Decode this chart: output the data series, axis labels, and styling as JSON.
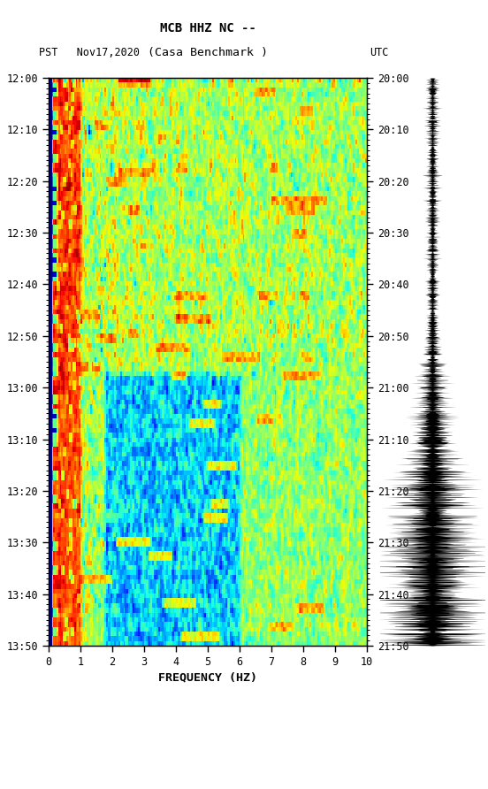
{
  "title_line1": "MCB HHZ NC --",
  "title_line2": "(Casa Benchmark )",
  "left_label_pst": "PST",
  "left_label_date": "Nov17,2020",
  "right_label": "UTC",
  "yticks_left": [
    "12:00",
    "12:10",
    "12:20",
    "12:30",
    "12:40",
    "12:50",
    "13:00",
    "13:10",
    "13:20",
    "13:30",
    "13:40",
    "13:50"
  ],
  "yticks_right": [
    "20:00",
    "20:10",
    "20:20",
    "20:30",
    "20:40",
    "20:50",
    "21:00",
    "21:10",
    "21:20",
    "21:30",
    "21:40",
    "21:50"
  ],
  "xticks": [
    0,
    1,
    2,
    3,
    4,
    5,
    6,
    7,
    8,
    9,
    10
  ],
  "xlabel": "FREQUENCY (HZ)",
  "freq_min": 0,
  "freq_max": 10,
  "colormap": "jet",
  "bg_color": "#ffffff",
  "usgs_color": "#006400",
  "seed": 42,
  "n_time": 120,
  "n_freq": 200
}
